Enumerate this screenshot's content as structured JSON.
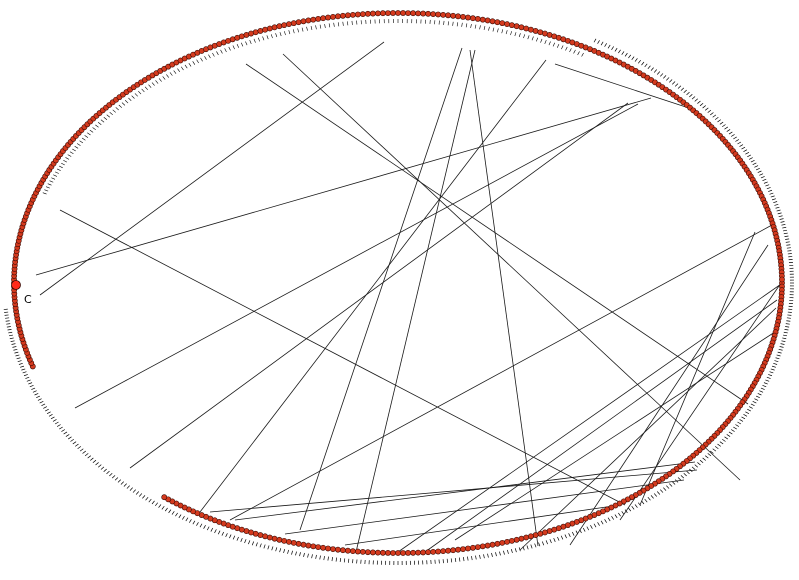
{
  "diagram": {
    "type": "circular-graph",
    "colors": {
      "background": "#ffffff",
      "node_fill": "#d43a1e",
      "node_stroke": "#3a0a04",
      "edge": "#1a1a1a",
      "ring_tick": "#000000",
      "selected_node": "#ff2a1a"
    },
    "start_marker": {
      "text": "C"
    }
  }
}
